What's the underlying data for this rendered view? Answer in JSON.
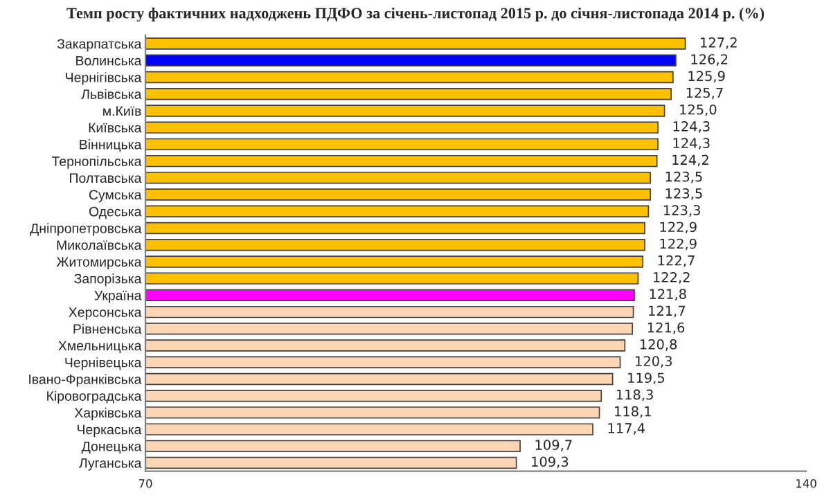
{
  "chart_data": {
    "type": "bar",
    "orientation": "horizontal",
    "title": "Темп росту фактичних надходжень ПДФО за січень-листопад 2015 р. до січня-листопада 2014 р. (%)",
    "categories": [
      "Закарпатська",
      "Волинська",
      "Чернігівська",
      "Львівська",
      "м.Київ",
      "Київська",
      "Вінницька",
      "Тернопільська",
      "Полтавська",
      "Сумська",
      "Одеська",
      "Дніпропетровська",
      "Миколаївська",
      "Житомирська",
      "Запорізька",
      "Україна",
      "Херсонська",
      "Рівненська",
      "Хмельницька",
      "Чернівецька",
      "Івано-Франківська",
      "Кіровоградська",
      "Харківська",
      "Черкаська",
      "Донецька",
      "Луганська"
    ],
    "values": [
      127.2,
      126.2,
      125.9,
      125.7,
      125.0,
      124.3,
      124.3,
      124.2,
      123.5,
      123.5,
      123.3,
      122.9,
      122.9,
      122.7,
      122.2,
      121.8,
      121.7,
      121.6,
      120.8,
      120.3,
      119.5,
      118.3,
      118.1,
      117.4,
      109.7,
      109.3
    ],
    "value_labels": [
      "127,2",
      "126,2",
      "125,9",
      "125,7",
      "125,0",
      "124,3",
      "124,3",
      "124,2",
      "123,5",
      "123,5",
      "123,3",
      "122,9",
      "122,9",
      "122,7",
      "122,2",
      "121,8",
      "121,7",
      "121,6",
      "120,8",
      "120,3",
      "119,5",
      "118,3",
      "118,1",
      "117,4",
      "109,7",
      "109,3"
    ],
    "colors": [
      "#ffc000",
      "#0000ff",
      "#ffc000",
      "#ffc000",
      "#ffc000",
      "#ffc000",
      "#ffc000",
      "#ffc000",
      "#ffc000",
      "#ffc000",
      "#ffc000",
      "#ffc000",
      "#ffc000",
      "#ffc000",
      "#ffc000",
      "#ff00ff",
      "#fcd5b5",
      "#fcd5b5",
      "#fcd5b5",
      "#fcd5b5",
      "#fcd5b5",
      "#fcd5b5",
      "#fcd5b5",
      "#fcd5b5",
      "#fcd5b5",
      "#fcd5b5"
    ],
    "xlim": [
      70,
      140
    ],
    "xticks": [
      70,
      140
    ],
    "grid": false,
    "legend": false
  }
}
